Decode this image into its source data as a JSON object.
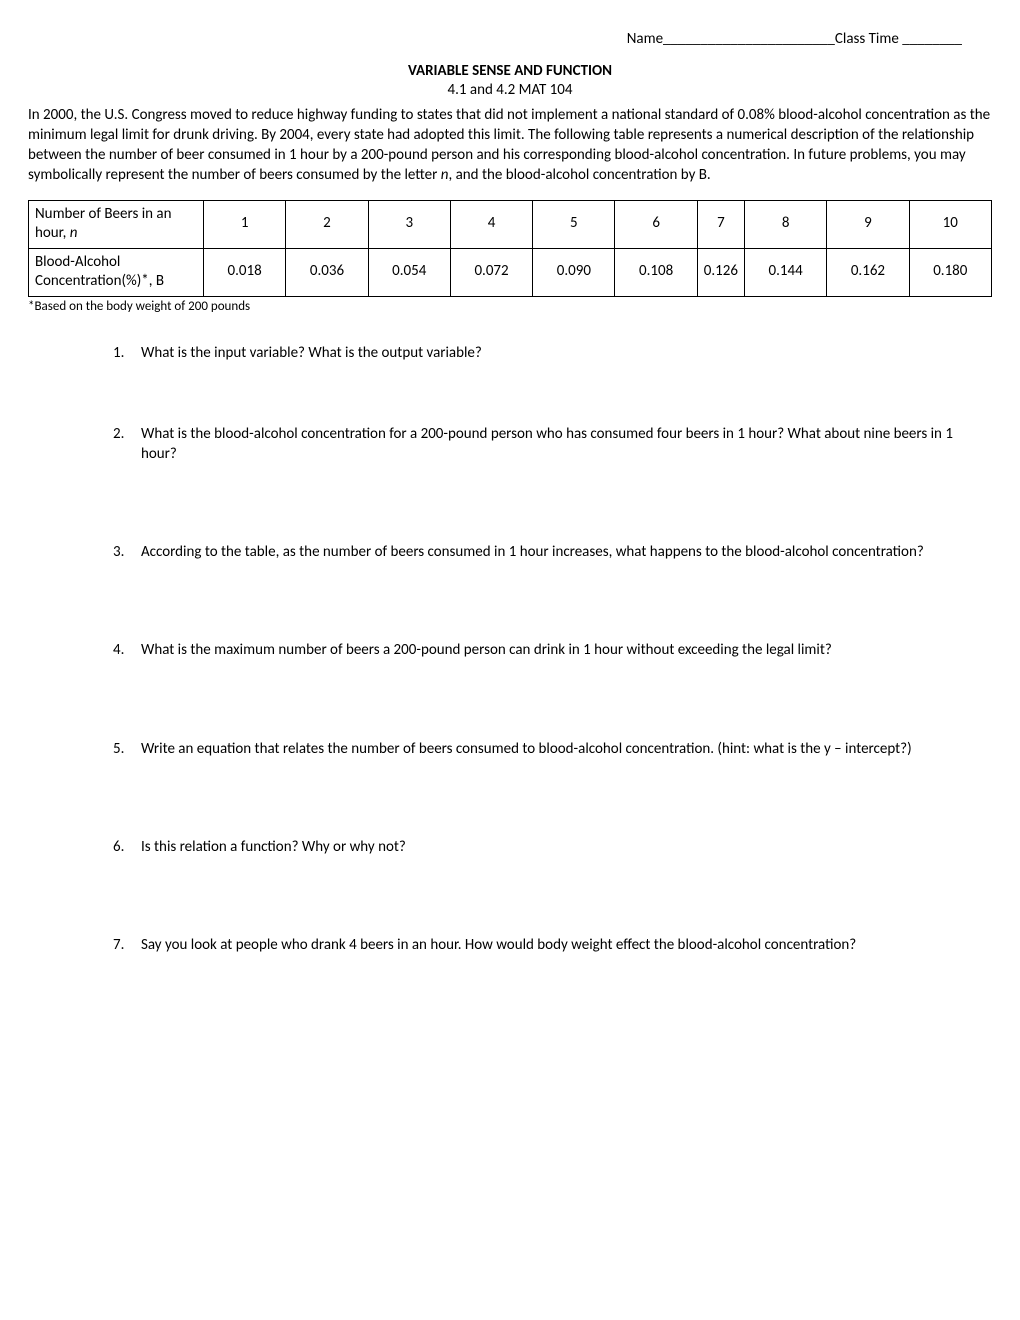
{
  "header": {
    "name_label": "Name",
    "name_blank": "_______________________",
    "class_label": "Class Time",
    "class_blank": "________"
  },
  "title": "VARIABLE SENSE AND FUNCTION",
  "subtitle": "4.1 and 4.2  MAT 104",
  "intro": "In 2000, the U.S. Congress moved to reduce highway funding to states that did not implement a national standard of 0.08% blood-alcohol concentration as the minimum legal limit for drunk driving.  By 2004, every state had adopted this limit.  The following table represents a numerical description of the relationship between the number of beer consumed in 1 hour by a 200-pound person and his corresponding blood-alcohol concentration.  In future problems, you may symbolically represent the number of beers consumed by the letter ",
  "intro_var": "n",
  "intro_after": ", and the blood-alcohol concentration by B.",
  "table": {
    "row1_label_a": "Number of Beers in an hour, ",
    "row1_label_b": "n",
    "row1_values": [
      "1",
      "2",
      "3",
      "4",
      "5",
      "6",
      "7",
      "8",
      "9",
      "10"
    ],
    "row2_label": "Blood-Alcohol Concentration(%)*, B",
    "row2_values": [
      "0.018",
      "0.036",
      "0.054",
      "0.072",
      "0.090",
      "0.108",
      "0.126",
      "0.144",
      "0.162",
      "0.180"
    ]
  },
  "footnote": "*Based on the body weight of 200 pounds",
  "questions": [
    " What is the input variable?  What is the output variable?",
    "What is the blood-alcohol concentration for a 200-pound person who has consumed four beers in 1 hour?  What about nine beers in 1 hour?",
    "According to the table, as the number of beers consumed in 1 hour increases, what happens to the blood-alcohol concentration?",
    "What is the maximum number of beers a 200-pound person can drink in 1 hour without exceeding the legal limit?",
    "Write an equation that relates the number of beers consumed to blood-alcohol concentration. (hint: what is the y – intercept?)",
    "Is this relation a function?  Why or why not?",
    "Say you look at people who drank 4 beers in an hour.  How would body weight effect the blood-alcohol concentration?"
  ]
}
